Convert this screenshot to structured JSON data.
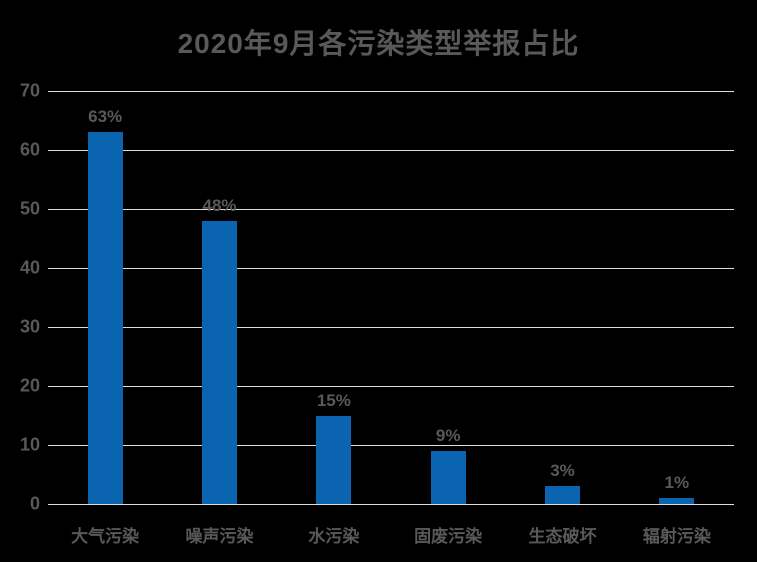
{
  "title": "2020年9月各污染类型举报占比",
  "colors": {
    "background": "#000000",
    "bar": "#0A64AF",
    "text": "#595959",
    "gridline": "#DEDEDE"
  },
  "chart_data": {
    "type": "bar",
    "title": "2020年9月各污染类型举报占比",
    "categories": [
      "大气污染",
      "噪声污染",
      "水污染",
      "固废污染",
      "生态破坏",
      "辐射污染"
    ],
    "values": [
      63,
      48,
      15,
      9,
      3,
      1
    ],
    "data_labels": [
      "63%",
      "48%",
      "15%",
      "9%",
      "3%",
      "1%"
    ],
    "xlabel": "",
    "ylabel": "",
    "ylim": [
      0,
      70
    ],
    "yticks": [
      0,
      10,
      20,
      30,
      40,
      50,
      60,
      70
    ],
    "grid": true,
    "legend": false
  }
}
